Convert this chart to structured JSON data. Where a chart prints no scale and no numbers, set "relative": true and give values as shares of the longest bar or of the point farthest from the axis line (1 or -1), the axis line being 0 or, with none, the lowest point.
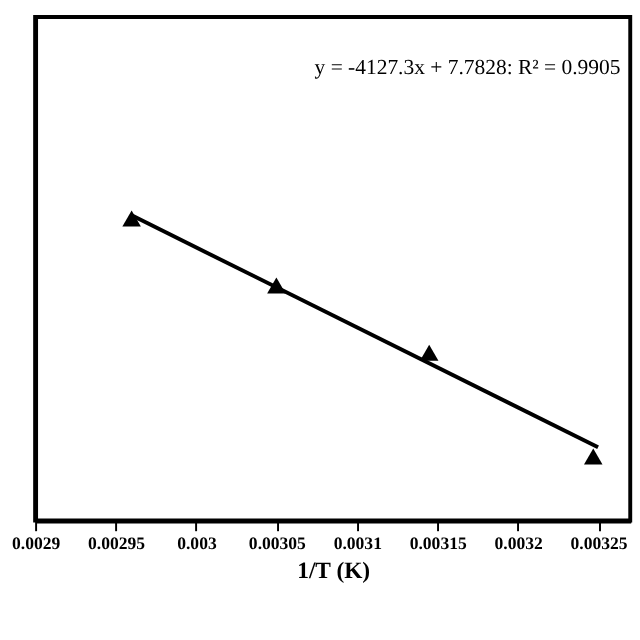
{
  "chart_data": {
    "type": "scatter",
    "xlabel": "1/T  (K)",
    "relative": true,
    "marker": "triangle",
    "grid": false,
    "xlim": [
      0.0029,
      0.00327
    ],
    "xticks": [
      0.0029,
      0.00295,
      0.003,
      0.00305,
      0.0031,
      0.00315,
      0.0032,
      0.00325
    ],
    "tick_labels": "x",
    "annotations": [
      "y = -4127.3x + 7.7828: R² = 0.9905"
    ],
    "series": [
      {
        "color": "#000000",
        "x": [
          0.00296,
          0.00305,
          0.003145,
          0.003247
        ],
        "values": [
          0.99,
          0.77,
          0.55,
          0.21
        ]
      },
      {
        "type": "line",
        "color": "#000000",
        "line_style": "solid",
        "marker": "none",
        "x": [
          0.00296,
          0.00325
        ],
        "values": [
          1.0,
          0.24
        ]
      }
    ]
  }
}
